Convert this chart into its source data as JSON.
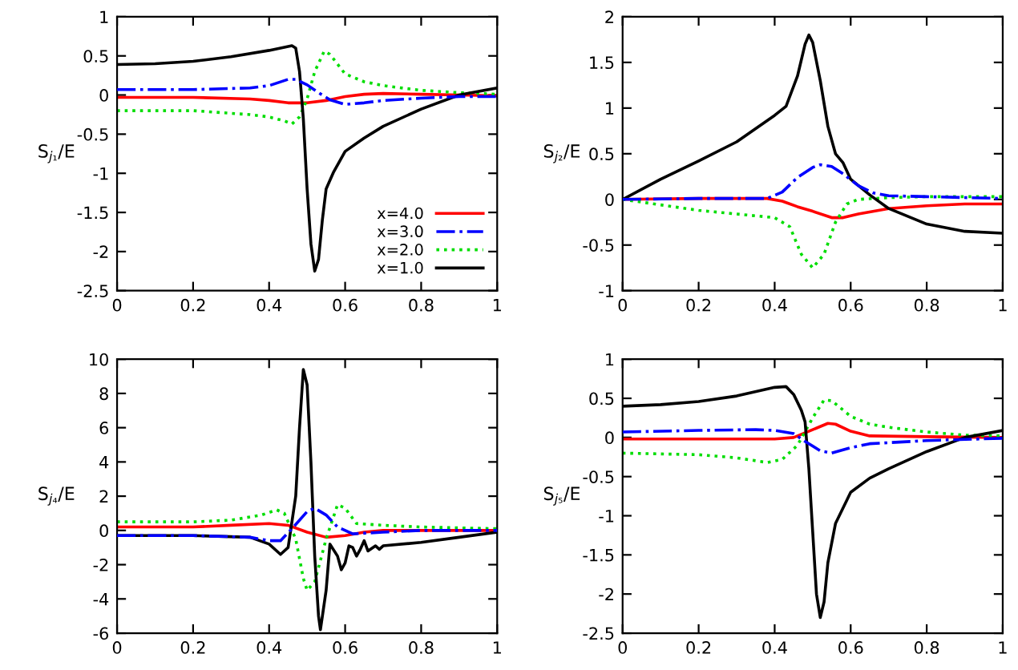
{
  "chart_data": [
    {
      "type": "line",
      "ylabel": "S$_{j₁}$/E",
      "xlim": [
        0,
        1
      ],
      "ylim": [
        -2.5,
        1
      ],
      "xticks": [
        0,
        0.2,
        0.4,
        0.6,
        0.8,
        1
      ],
      "yticks": [
        -2.5,
        -2,
        -1.5,
        -1,
        -0.5,
        0,
        0.5,
        1
      ],
      "grid": false,
      "legend": "bottom right",
      "marker": "none",
      "series": [
        {
          "name": "x=4.0",
          "color": "#ff0000",
          "line_style": "solid",
          "x": [
            0,
            0.2,
            0.35,
            0.4,
            0.45,
            0.5,
            0.55,
            0.6,
            0.65,
            0.7,
            0.8,
            0.9,
            1
          ],
          "values": [
            -0.03,
            -0.03,
            -0.05,
            -0.07,
            -0.1,
            -0.1,
            -0.07,
            -0.02,
            0.01,
            0.02,
            0.01,
            0,
            -0.01
          ]
        },
        {
          "name": "x=3.0",
          "color": "#0000ff",
          "line_style": "dashed",
          "x": [
            0,
            0.2,
            0.35,
            0.4,
            0.45,
            0.47,
            0.5,
            0.53,
            0.56,
            0.6,
            0.65,
            0.7,
            0.8,
            0.9,
            1
          ],
          "values": [
            0.07,
            0.07,
            0.09,
            0.12,
            0.2,
            0.2,
            0.13,
            0.03,
            -0.06,
            -0.12,
            -0.1,
            -0.07,
            -0.04,
            -0.02,
            -0.02
          ]
        },
        {
          "name": "x=2.0",
          "color": "#00dd00",
          "line_style": "dotted",
          "x": [
            0,
            0.2,
            0.35,
            0.4,
            0.44,
            0.46,
            0.48,
            0.5,
            0.52,
            0.545,
            0.56,
            0.6,
            0.65,
            0.7,
            0.8,
            0.9,
            1
          ],
          "values": [
            -0.2,
            -0.2,
            -0.25,
            -0.28,
            -0.33,
            -0.37,
            -0.28,
            -0.05,
            0.3,
            0.56,
            0.52,
            0.27,
            0.17,
            0.12,
            0.06,
            0.03,
            0.01
          ]
        },
        {
          "name": "x=1.0",
          "color": "#000000",
          "line_style": "solid",
          "x": [
            0,
            0.1,
            0.2,
            0.3,
            0.4,
            0.46,
            0.47,
            0.48,
            0.49,
            0.5,
            0.51,
            0.52,
            0.53,
            0.54,
            0.55,
            0.57,
            0.6,
            0.65,
            0.7,
            0.8,
            0.9,
            1
          ],
          "values": [
            0.39,
            0.4,
            0.43,
            0.49,
            0.57,
            0.63,
            0.6,
            0.3,
            -0.3,
            -1.2,
            -1.9,
            -2.25,
            -2.1,
            -1.6,
            -1.2,
            -0.98,
            -0.72,
            -0.55,
            -0.4,
            -0.18,
            0.0,
            0.09
          ]
        }
      ]
    },
    {
      "type": "line",
      "ylabel": "S$_{j₂}$/E",
      "xlim": [
        0,
        1
      ],
      "ylim": [
        -1,
        2
      ],
      "xticks": [
        0,
        0.2,
        0.4,
        0.6,
        0.8,
        1
      ],
      "yticks": [
        -1,
        -0.5,
        0,
        0.5,
        1,
        1.5,
        2
      ],
      "grid": false,
      "legend": false,
      "marker": "none",
      "series": [
        {
          "color": "#ff0000",
          "line_style": "solid",
          "x": [
            0,
            0.2,
            0.38,
            0.42,
            0.46,
            0.5,
            0.55,
            0.58,
            0.62,
            0.7,
            0.8,
            0.9,
            1
          ],
          "values": [
            0,
            0.01,
            0.01,
            -0.02,
            -0.08,
            -0.13,
            -0.2,
            -0.2,
            -0.16,
            -0.1,
            -0.07,
            -0.05,
            -0.05
          ]
        },
        {
          "color": "#0000ff",
          "line_style": "dashed",
          "x": [
            0,
            0.2,
            0.38,
            0.42,
            0.46,
            0.5,
            0.52,
            0.55,
            0.58,
            0.62,
            0.66,
            0.7,
            0.8,
            0.9,
            1
          ],
          "values": [
            0,
            0.01,
            0.01,
            0.08,
            0.24,
            0.35,
            0.38,
            0.36,
            0.28,
            0.15,
            0.07,
            0.04,
            0.03,
            0.02,
            0.01
          ]
        },
        {
          "color": "#00dd00",
          "line_style": "dotted",
          "x": [
            0,
            0.1,
            0.2,
            0.3,
            0.4,
            0.44,
            0.47,
            0.5,
            0.53,
            0.56,
            0.59,
            0.62,
            0.7,
            0.8,
            0.9,
            1
          ],
          "values": [
            0,
            -0.06,
            -0.12,
            -0.16,
            -0.2,
            -0.3,
            -0.6,
            -0.75,
            -0.6,
            -0.25,
            -0.05,
            0.0,
            0.02,
            0.03,
            0.03,
            0.03
          ]
        },
        {
          "color": "#000000",
          "line_style": "solid",
          "x": [
            0,
            0.1,
            0.2,
            0.3,
            0.4,
            0.43,
            0.46,
            0.48,
            0.49,
            0.5,
            0.52,
            0.54,
            0.56,
            0.58,
            0.6,
            0.65,
            0.7,
            0.8,
            0.9,
            1
          ],
          "values": [
            0,
            0.22,
            0.42,
            0.63,
            0.92,
            1.02,
            1.35,
            1.7,
            1.8,
            1.72,
            1.3,
            0.8,
            0.5,
            0.4,
            0.22,
            0.05,
            -0.1,
            -0.27,
            -0.35,
            -0.37
          ]
        }
      ]
    },
    {
      "type": "line",
      "ylabel": "S$_{j₄}$/E",
      "xlim": [
        0,
        1
      ],
      "ylim": [
        -6,
        10
      ],
      "xticks": [
        0,
        0.2,
        0.4,
        0.6,
        0.8,
        1
      ],
      "yticks": [
        -6,
        -4,
        -2,
        0,
        2,
        4,
        6,
        8,
        10
      ],
      "grid": false,
      "legend": false,
      "marker": "none",
      "series": [
        {
          "color": "#ff0000",
          "line_style": "solid",
          "x": [
            0,
            0.2,
            0.3,
            0.4,
            0.45,
            0.5,
            0.55,
            0.6,
            0.65,
            0.7,
            0.8,
            1
          ],
          "values": [
            0.2,
            0.2,
            0.3,
            0.4,
            0.3,
            -0.1,
            -0.4,
            -0.3,
            -0.1,
            0,
            0,
            0
          ]
        },
        {
          "color": "#0000ff",
          "line_style": "dashed",
          "x": [
            0,
            0.2,
            0.35,
            0.4,
            0.43,
            0.46,
            0.5,
            0.52,
            0.55,
            0.58,
            0.62,
            0.7,
            0.8,
            1
          ],
          "values": [
            -0.3,
            -0.3,
            -0.4,
            -0.6,
            -0.6,
            0.1,
            1.1,
            1.3,
            0.9,
            0.2,
            -0.2,
            -0.1,
            0,
            0
          ]
        },
        {
          "color": "#00dd00",
          "line_style": "dotted",
          "x": [
            0,
            0.2,
            0.3,
            0.38,
            0.42,
            0.44,
            0.47,
            0.49,
            0.5,
            0.52,
            0.55,
            0.58,
            0.6,
            0.63,
            0.7,
            0.8,
            1
          ],
          "values": [
            0.5,
            0.5,
            0.6,
            0.9,
            1.2,
            1.0,
            -0.5,
            -2.8,
            -3.5,
            -3.0,
            -0.5,
            1.5,
            1.3,
            0.4,
            0.3,
            0.2,
            0.1
          ]
        },
        {
          "color": "#000000",
          "line_style": "solid",
          "x": [
            0,
            0.2,
            0.35,
            0.4,
            0.43,
            0.45,
            0.47,
            0.48,
            0.49,
            0.5,
            0.51,
            0.52,
            0.53,
            0.535,
            0.55,
            0.56,
            0.58,
            0.59,
            0.6,
            0.61,
            0.62,
            0.63,
            0.64,
            0.65,
            0.66,
            0.68,
            0.69,
            0.7,
            0.8,
            0.9,
            1
          ],
          "values": [
            -0.3,
            -0.3,
            -0.4,
            -0.8,
            -1.4,
            -1.0,
            2.0,
            6.0,
            9.4,
            8.5,
            4.0,
            -1.5,
            -5.0,
            -5.8,
            -3.5,
            -0.8,
            -1.5,
            -2.3,
            -1.9,
            -0.9,
            -1.0,
            -1.5,
            -1.1,
            -0.6,
            -1.2,
            -0.9,
            -1.1,
            -0.9,
            -0.7,
            -0.4,
            -0.1
          ]
        }
      ]
    },
    {
      "type": "line",
      "ylabel": "S$_{j₅}$/E",
      "xlim": [
        0,
        1
      ],
      "ylim": [
        -2.5,
        1
      ],
      "xticks": [
        0,
        0.2,
        0.4,
        0.6,
        0.8,
        1
      ],
      "yticks": [
        -2.5,
        -2,
        -1.5,
        -1,
        -0.5,
        0,
        0.5,
        1
      ],
      "grid": false,
      "legend": false,
      "marker": "none",
      "series": [
        {
          "color": "#ff0000",
          "line_style": "solid",
          "x": [
            0,
            0.2,
            0.4,
            0.45,
            0.5,
            0.54,
            0.56,
            0.6,
            0.65,
            0.8,
            1
          ],
          "values": [
            -0.02,
            -0.02,
            -0.02,
            0.0,
            0.1,
            0.18,
            0.17,
            0.08,
            0.02,
            0.01,
            0
          ]
        },
        {
          "color": "#0000ff",
          "line_style": "dashed",
          "x": [
            0,
            0.2,
            0.35,
            0.4,
            0.45,
            0.48,
            0.52,
            0.55,
            0.6,
            0.65,
            0.8,
            1
          ],
          "values": [
            0.07,
            0.09,
            0.1,
            0.09,
            0.05,
            -0.05,
            -0.17,
            -0.2,
            -0.13,
            -0.08,
            -0.04,
            -0.01
          ]
        },
        {
          "color": "#00dd00",
          "line_style": "dotted",
          "x": [
            0,
            0.2,
            0.3,
            0.38,
            0.42,
            0.46,
            0.5,
            0.53,
            0.55,
            0.6,
            0.65,
            0.7,
            0.8,
            0.9,
            1
          ],
          "values": [
            -0.2,
            -0.22,
            -0.26,
            -0.32,
            -0.28,
            -0.1,
            0.25,
            0.48,
            0.47,
            0.27,
            0.17,
            0.13,
            0.07,
            0.03,
            0.02
          ]
        },
        {
          "color": "#000000",
          "line_style": "solid",
          "x": [
            0,
            0.1,
            0.2,
            0.3,
            0.4,
            0.43,
            0.45,
            0.47,
            0.48,
            0.49,
            0.5,
            0.51,
            0.52,
            0.53,
            0.54,
            0.56,
            0.58,
            0.6,
            0.65,
            0.7,
            0.8,
            0.9,
            1
          ],
          "values": [
            0.4,
            0.42,
            0.46,
            0.53,
            0.64,
            0.65,
            0.55,
            0.35,
            0.2,
            -0.4,
            -1.2,
            -2.0,
            -2.3,
            -2.1,
            -1.6,
            -1.1,
            -0.9,
            -0.7,
            -0.52,
            -0.4,
            -0.18,
            0.0,
            0.09
          ]
        }
      ]
    }
  ]
}
